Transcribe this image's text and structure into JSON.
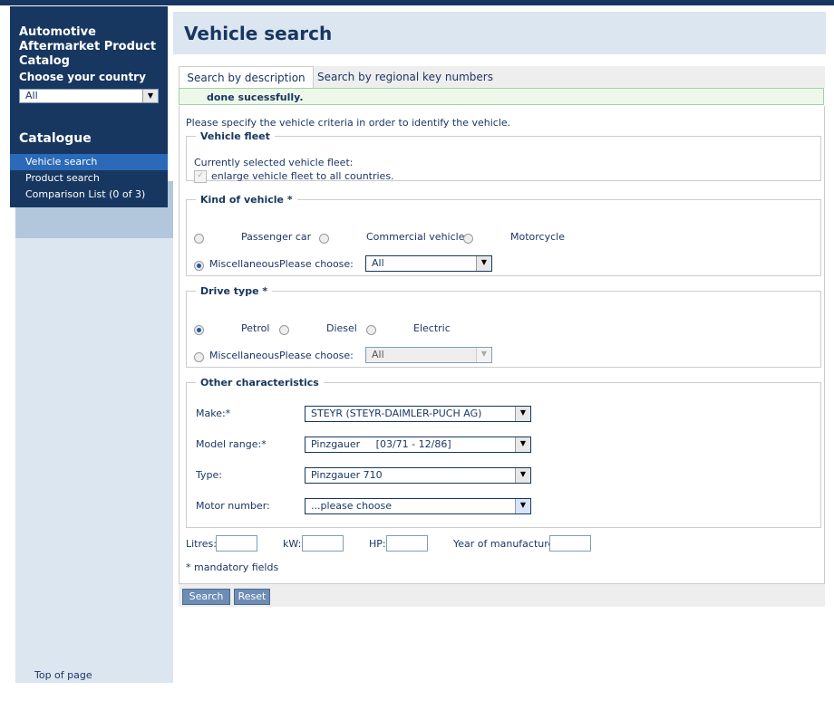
{
  "sidebar": {
    "app_title": "Automotive Aftermarket Product Catalog",
    "country_label": "Choose your country",
    "country_value": "All",
    "catalogue_title": "Catalogue",
    "items": [
      {
        "label": "Vehicle search",
        "active": true
      },
      {
        "label": "Product search"
      },
      {
        "label": "Comparison List (0 of 3)"
      }
    ],
    "top_of_page": "Top of page"
  },
  "header": {
    "title": "Vehicle search"
  },
  "tabs": [
    {
      "label": "Search by description",
      "active": true
    },
    {
      "label": "Search by regional key numbers"
    }
  ],
  "status": "done sucessfully.",
  "intro": "Please specify the vehicle criteria in order to identify the vehicle.",
  "fleet": {
    "legend": "Vehicle fleet",
    "current": "Currently selected vehicle fleet:",
    "enlarge": "enlarge vehicle fleet to all countries.",
    "checked": true
  },
  "kind": {
    "legend": "Kind of vehicle *",
    "options": [
      "Passenger car",
      "Commercial vehicle",
      "Motorcycle",
      "Miscellaneous"
    ],
    "selected": "Miscellaneous",
    "please_choose": "Please choose:",
    "choose_value": "All"
  },
  "drive": {
    "legend": "Drive type *",
    "options": [
      "Petrol",
      "Diesel",
      "Electric",
      "Miscellaneous"
    ],
    "selected": "Petrol",
    "please_choose": "Please choose:",
    "choose_value": "All"
  },
  "other": {
    "legend": "Other characteristics",
    "make_label": "Make:*",
    "make": "STEYR (STEYR-DAIMLER-PUCH AG)",
    "model_label": "Model range:*",
    "model": "Pinzgauer     [03/71 - 12/86]",
    "type_label": "Type:",
    "type": "Pinzgauer 710",
    "motor_label": "Motor number:",
    "motor": "...please choose"
  },
  "extra": {
    "litres": "Litres:",
    "kw": "kW:",
    "hp": "HP:",
    "year": "Year of manufacture:"
  },
  "mandatory": "* mandatory fields",
  "buttons": {
    "search": "Search",
    "reset": "Reset"
  },
  "colors": {
    "navy": "#173760",
    "light_blue": "#dce6f1",
    "active_nav": "#2a6ab8",
    "success_border": "#9fd59f"
  }
}
